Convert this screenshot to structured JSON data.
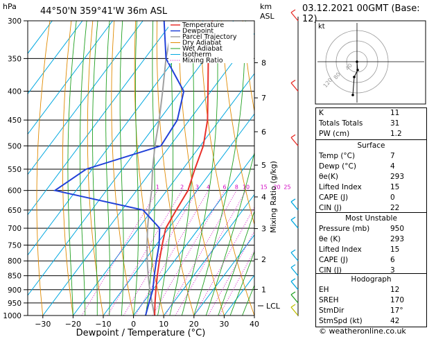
{
  "header": {
    "station": "44°50'N  359°41'W  36m  ASL",
    "datetime": "03.12.2021  00GMT  (Base: 12)",
    "hpa_label": "hPa",
    "km_label": "km",
    "asl_label": "ASL"
  },
  "axes": {
    "xlabel": "Dewpoint / Temperature (°C)",
    "mixing_label": "Mixing Ratio (g/kg)",
    "pressure_ticks": [
      "300",
      "350",
      "400",
      "450",
      "500",
      "550",
      "600",
      "650",
      "700",
      "750",
      "800",
      "850",
      "900",
      "950",
      "1000"
    ],
    "temp_ticks": [
      "−30",
      "−20",
      "−10",
      "0",
      "10",
      "20",
      "30",
      "40"
    ],
    "km_ticks": [
      "8",
      "7",
      "6",
      "5",
      "4",
      "3",
      "2",
      "1"
    ],
    "lcl_label": "LCL",
    "mixing_ticks": [
      "1",
      "2",
      "3",
      "4",
      "6",
      "8",
      "10",
      "15",
      "20",
      "25"
    ]
  },
  "legend": {
    "temperature": "Temperature",
    "dewpoint": "Dewpoint",
    "parcel": "Parcel Trajectory",
    "dry": "Dry Adiabat",
    "wet": "Wet Adiabat",
    "isotherm": "Isotherm",
    "mixing": "Mixing Ratio"
  },
  "colors": {
    "temperature": "#e8302a",
    "dewpoint": "#2040d8",
    "parcel": "#a0a0a0",
    "dry": "#e08a00",
    "wet": "#20a020",
    "isotherm": "#00a8e0",
    "mixing": "#d000c0"
  },
  "chart_data": {
    "type": "line",
    "title": "",
    "xlabel": "Dewpoint / Temperature (°C)",
    "ylabel": "hPa",
    "xlim": [
      -35,
      40
    ],
    "ylim": [
      1000,
      300
    ],
    "y_scale": "log",
    "series": [
      {
        "name": "Temperature",
        "points": [
          [
            1000,
            7
          ],
          [
            950,
            4
          ],
          [
            900,
            1
          ],
          [
            850,
            -2
          ],
          [
            800,
            -5
          ],
          [
            750,
            -8
          ],
          [
            700,
            -11
          ],
          [
            650,
            -12
          ],
          [
            600,
            -13
          ],
          [
            550,
            -16
          ],
          [
            500,
            -19
          ],
          [
            450,
            -24
          ],
          [
            400,
            -31
          ],
          [
            350,
            -39
          ],
          [
            300,
            -47
          ]
        ]
      },
      {
        "name": "Dewpoint",
        "points": [
          [
            1000,
            4
          ],
          [
            950,
            2
          ],
          [
            900,
            0
          ],
          [
            850,
            -3
          ],
          [
            800,
            -6
          ],
          [
            750,
            -9
          ],
          [
            700,
            -13
          ],
          [
            650,
            -23
          ],
          [
            600,
            -57
          ],
          [
            550,
            -52
          ],
          [
            500,
            -33
          ],
          [
            450,
            -34
          ],
          [
            400,
            -39
          ],
          [
            350,
            -53
          ],
          [
            300,
            -63
          ]
        ]
      },
      {
        "name": "Parcel Trajectory",
        "points": [
          [
            1000,
            7
          ],
          [
            950,
            3
          ],
          [
            900,
            -1
          ],
          [
            850,
            -5
          ],
          [
            800,
            -9
          ],
          [
            750,
            -13
          ],
          [
            700,
            -17
          ],
          [
            650,
            -21
          ],
          [
            600,
            -25
          ],
          [
            550,
            -30
          ],
          [
            500,
            -35
          ],
          [
            450,
            -40
          ],
          [
            400,
            -46
          ],
          [
            350,
            -53
          ],
          [
            300,
            -60
          ]
        ]
      }
    ],
    "hodograph": {
      "label": "kt",
      "rings": [
        "120",
        "80",
        "40"
      ],
      "points": [
        [
          0,
          0
        ],
        [
          1,
          -12
        ],
        [
          -4,
          -22
        ],
        [
          -6,
          -48
        ]
      ]
    }
  },
  "indices": {
    "k_label": "K",
    "k": "11",
    "tt_label": "Totals Totals",
    "tt": "31",
    "pw_label": "PW (cm)",
    "pw": "1.2"
  },
  "surface": {
    "title": "Surface",
    "temp_label": "Temp (°C)",
    "temp": "7",
    "dewp_label": "Dewp (°C)",
    "dewp": "4",
    "theta_label": "θe(K)",
    "theta": "293",
    "li_label": "Lifted Index",
    "li": "15",
    "cape_label": "CAPE (J)",
    "cape": "0",
    "cin_label": "CIN (J)",
    "cin": "22"
  },
  "most_unstable": {
    "title": "Most Unstable",
    "pres_label": "Pressure (mb)",
    "pres": "950",
    "theta_label": "θe (K)",
    "theta": "293",
    "li_label": "Lifted Index",
    "li": "15",
    "cape_label": "CAPE (J)",
    "cape": "6",
    "cin_label": "CIN (J)",
    "cin": "3"
  },
  "hodograph_table": {
    "title": "Hodograph",
    "eh_label": "EH",
    "eh": "12",
    "sreh_label": "SREH",
    "sreh": "170",
    "stmdir_label": "StmDir",
    "stmdir": "17°",
    "stmspd_label": "StmSpd (kt)",
    "stmspd": "42"
  },
  "footer": "© weatheronline.co.uk"
}
